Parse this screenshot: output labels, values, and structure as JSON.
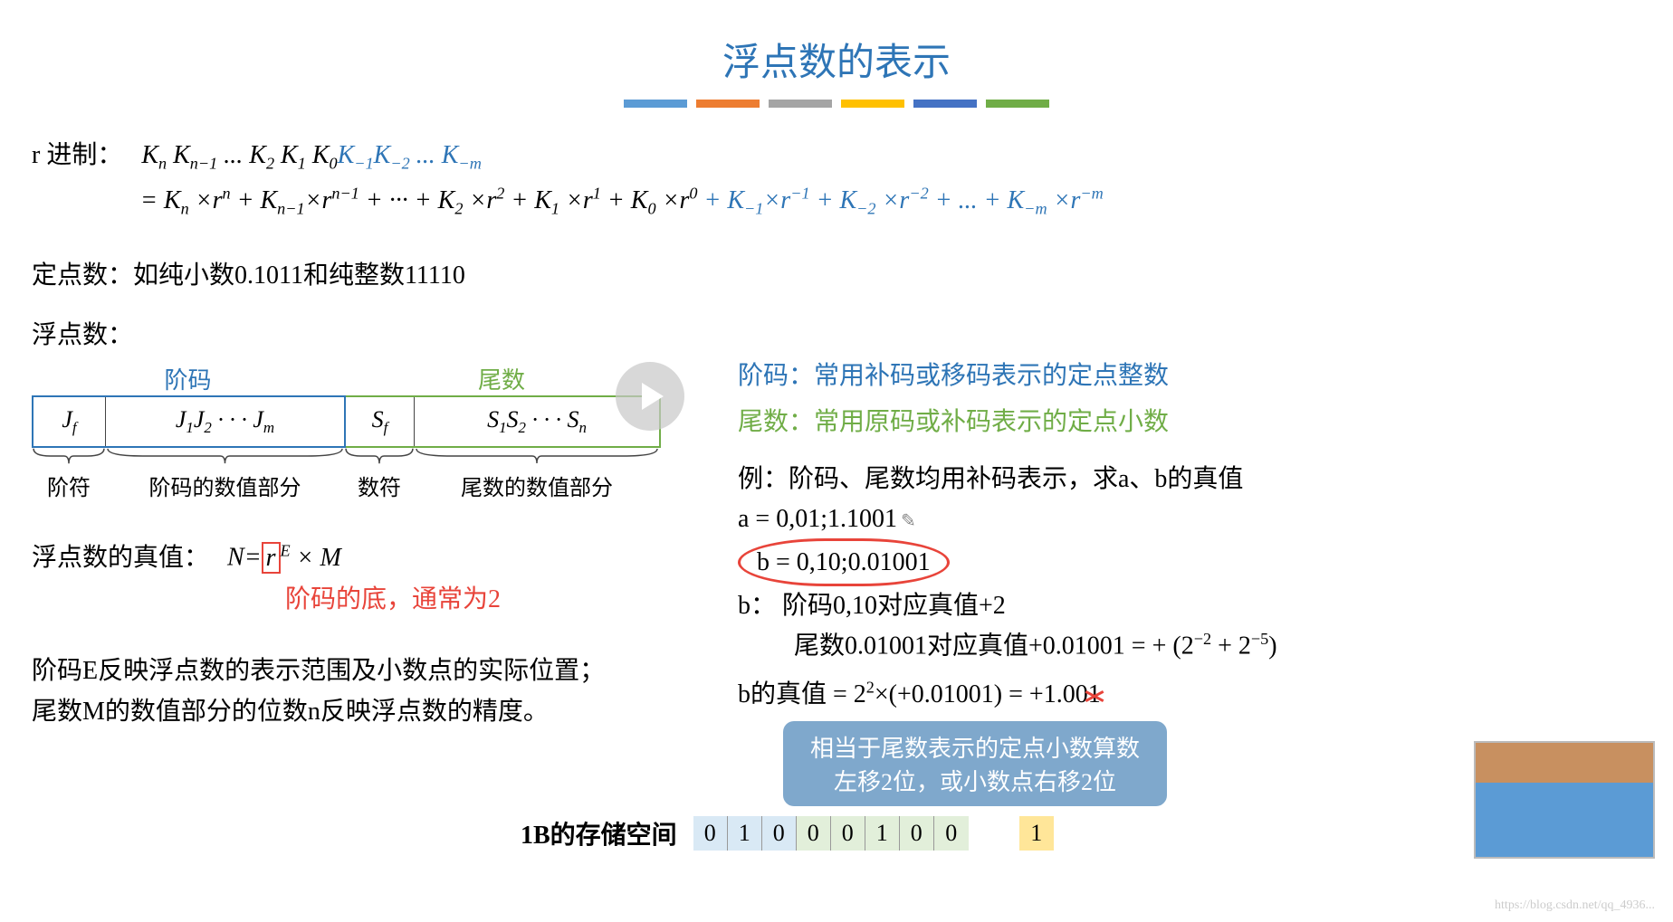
{
  "title": "浮点数的表示",
  "bars": [
    "#5b9bd5",
    "#ed7d31",
    "#a5a5a5",
    "#ffc000",
    "#4472c4",
    "#70ad47"
  ],
  "r_label": "r 进制：",
  "r_formula_integer": "K<sub>n</sub> K<sub>n−1</sub> ... K<sub>2</sub> K<sub>1</sub> K<sub>0</sub>",
  "r_formula_fraction": "K<sub>−1</sub>K<sub>−2</sub> ... K<sub>−m</sub>",
  "r_expand_integer": "= K<sub>n</sub> ×r<sup>n</sup> + K<sub>n−1</sub>×r<sup>n−1</sup> + ··· + K<sub>2</sub> ×r<sup>2</sup> + K<sub>1</sub> ×r<sup>1</sup> + K<sub>0</sub> ×r<sup>0</sup>",
  "r_expand_fraction": " + K<sub>−1</sub>×r<sup>−1</sup> + K<sub>−2</sub> ×r<sup>−2</sup> + ... + K<sub>−m</sub> ×r<sup>−m</sup>",
  "fixed_line": "定点数：如纯小数0.1011和纯整数11110",
  "float_label": "浮点数：",
  "tbl": {
    "header_l": "阶码",
    "header_r": "尾数",
    "c1": "J<sub>f</sub>",
    "c2": "J<sub>1</sub>J<sub>2</sub> · · · J<sub>m</sub>",
    "c3": "S<sub>f</sub>",
    "c4": "S<sub>1</sub>S<sub>2</sub> · · · S<sub>n</sub>",
    "b1": "阶符",
    "b2": "阶码的数值部分",
    "b3": "数符",
    "b4": "尾数的数值部分"
  },
  "realval_label": "浮点数的真值：",
  "realval_formula_pre": "N=",
  "realval_r": "r",
  "realval_formula_post": "<sup>E</sup> × M",
  "red_note": "阶码的底，通常为2",
  "desc1": "阶码E反映浮点数的表示范围及小数点的实际位置；",
  "desc2": "尾数M的数值部分的位数n反映浮点数的精度。",
  "right": {
    "l1a": "阶码：",
    "l1b": "常用补码或移码表示的定点整数",
    "l2a": "尾数：",
    "l2b": "常用原码或补码表示的定点小数",
    "ex_label": "例：阶码、尾数均用补码表示，求a、b的真值",
    "a_line": "a = 0,01;1.1001",
    "b_line": "b = 0,10;0.01001",
    "b_exp1": "b：  阶码0,10对应真值+2",
    "b_exp2": "尾数0.01001对应真值+0.01001 = + (2<sup>−2</sup> + 2<sup>−5</sup>)",
    "b_realval_pre": "b的真值 = 2<sup>2</sup>×(+0.01001) = +1.00",
    "b_realval_crossed": "1",
    "bubble_l1": "相当于尾数表示的定点小数算数",
    "bubble_l2": "左移2位，或小数点右移2位"
  },
  "storage_label": "1B的存储空间",
  "bits": [
    {
      "v": "0",
      "bg": "#d9e9f5"
    },
    {
      "v": "1",
      "bg": "#d9e9f5"
    },
    {
      "v": "0",
      "bg": "#d9e9f5"
    },
    {
      "v": "0",
      "bg": "#e2efda"
    },
    {
      "v": "0",
      "bg": "#e2efda"
    },
    {
      "v": "1",
      "bg": "#e2efda"
    },
    {
      "v": "0",
      "bg": "#e2efda"
    },
    {
      "v": "0",
      "bg": "#e2efda"
    }
  ],
  "extra_bit": {
    "v": "1",
    "bg": "#ffe699"
  },
  "watermark": "https://blog.csdn.net/qq_4936..."
}
